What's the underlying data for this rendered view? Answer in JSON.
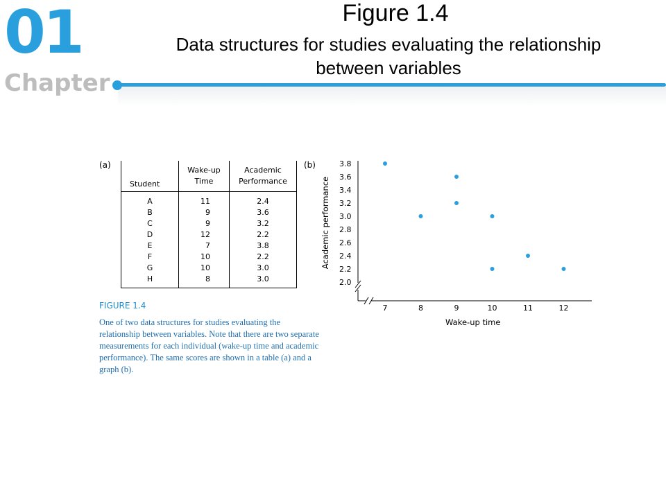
{
  "header": {
    "chapter_number": "01",
    "chapter_word": "Chapter",
    "figure_title": "Figure 1.4",
    "figure_subtitle": "Data structures for studies evaluating the relationship between variables"
  },
  "colors": {
    "accent": "#2a9fde",
    "chapter_gray": "#bdbdbd",
    "caption": "#1f6fb0",
    "point": "#2a9fde"
  },
  "panel_a": {
    "label": "(a)",
    "headers": {
      "student": "Student",
      "wake_line1": "Wake-up",
      "wake_line2": "Time",
      "perf_line1": "Academic",
      "perf_line2": "Performance"
    },
    "rows": [
      {
        "student": "A",
        "wake": "11",
        "perf": "2.4"
      },
      {
        "student": "B",
        "wake": "9",
        "perf": "3.6"
      },
      {
        "student": "C",
        "wake": "9",
        "perf": "3.2"
      },
      {
        "student": "D",
        "wake": "12",
        "perf": "2.2"
      },
      {
        "student": "E",
        "wake": "7",
        "perf": "3.8"
      },
      {
        "student": "F",
        "wake": "10",
        "perf": "2.2"
      },
      {
        "student": "G",
        "wake": "10",
        "perf": "3.0"
      },
      {
        "student": "H",
        "wake": "8",
        "perf": "3.0"
      }
    ]
  },
  "panel_b": {
    "label": "(b)"
  },
  "caption": {
    "heading": "FIGURE 1.4",
    "text": "One of two data structures for studies evaluating the relationship between variables. Note that there are two separate measurements for each individual (wake-up time and academic performance). The same scores are shown in a table (a) and a graph (b)."
  },
  "chart_data": {
    "type": "scatter",
    "xlabel": "Wake-up time",
    "ylabel": "Academic performance",
    "x_ticks": [
      7,
      8,
      9,
      10,
      11,
      12
    ],
    "y_ticks": [
      "2.0",
      "2.2",
      "2.4",
      "2.6",
      "2.8",
      "3.0",
      "3.2",
      "3.4",
      "3.6",
      "3.8"
    ],
    "xlim": [
      7,
      12
    ],
    "ylim": [
      2.0,
      3.8
    ],
    "axis_breaks": true,
    "grid": false,
    "points": [
      {
        "x": 11,
        "y": 2.4
      },
      {
        "x": 9,
        "y": 3.6
      },
      {
        "x": 9,
        "y": 3.2
      },
      {
        "x": 12,
        "y": 2.2
      },
      {
        "x": 7,
        "y": 3.8
      },
      {
        "x": 10,
        "y": 2.2
      },
      {
        "x": 10,
        "y": 3.0
      },
      {
        "x": 8,
        "y": 3.0
      }
    ]
  }
}
